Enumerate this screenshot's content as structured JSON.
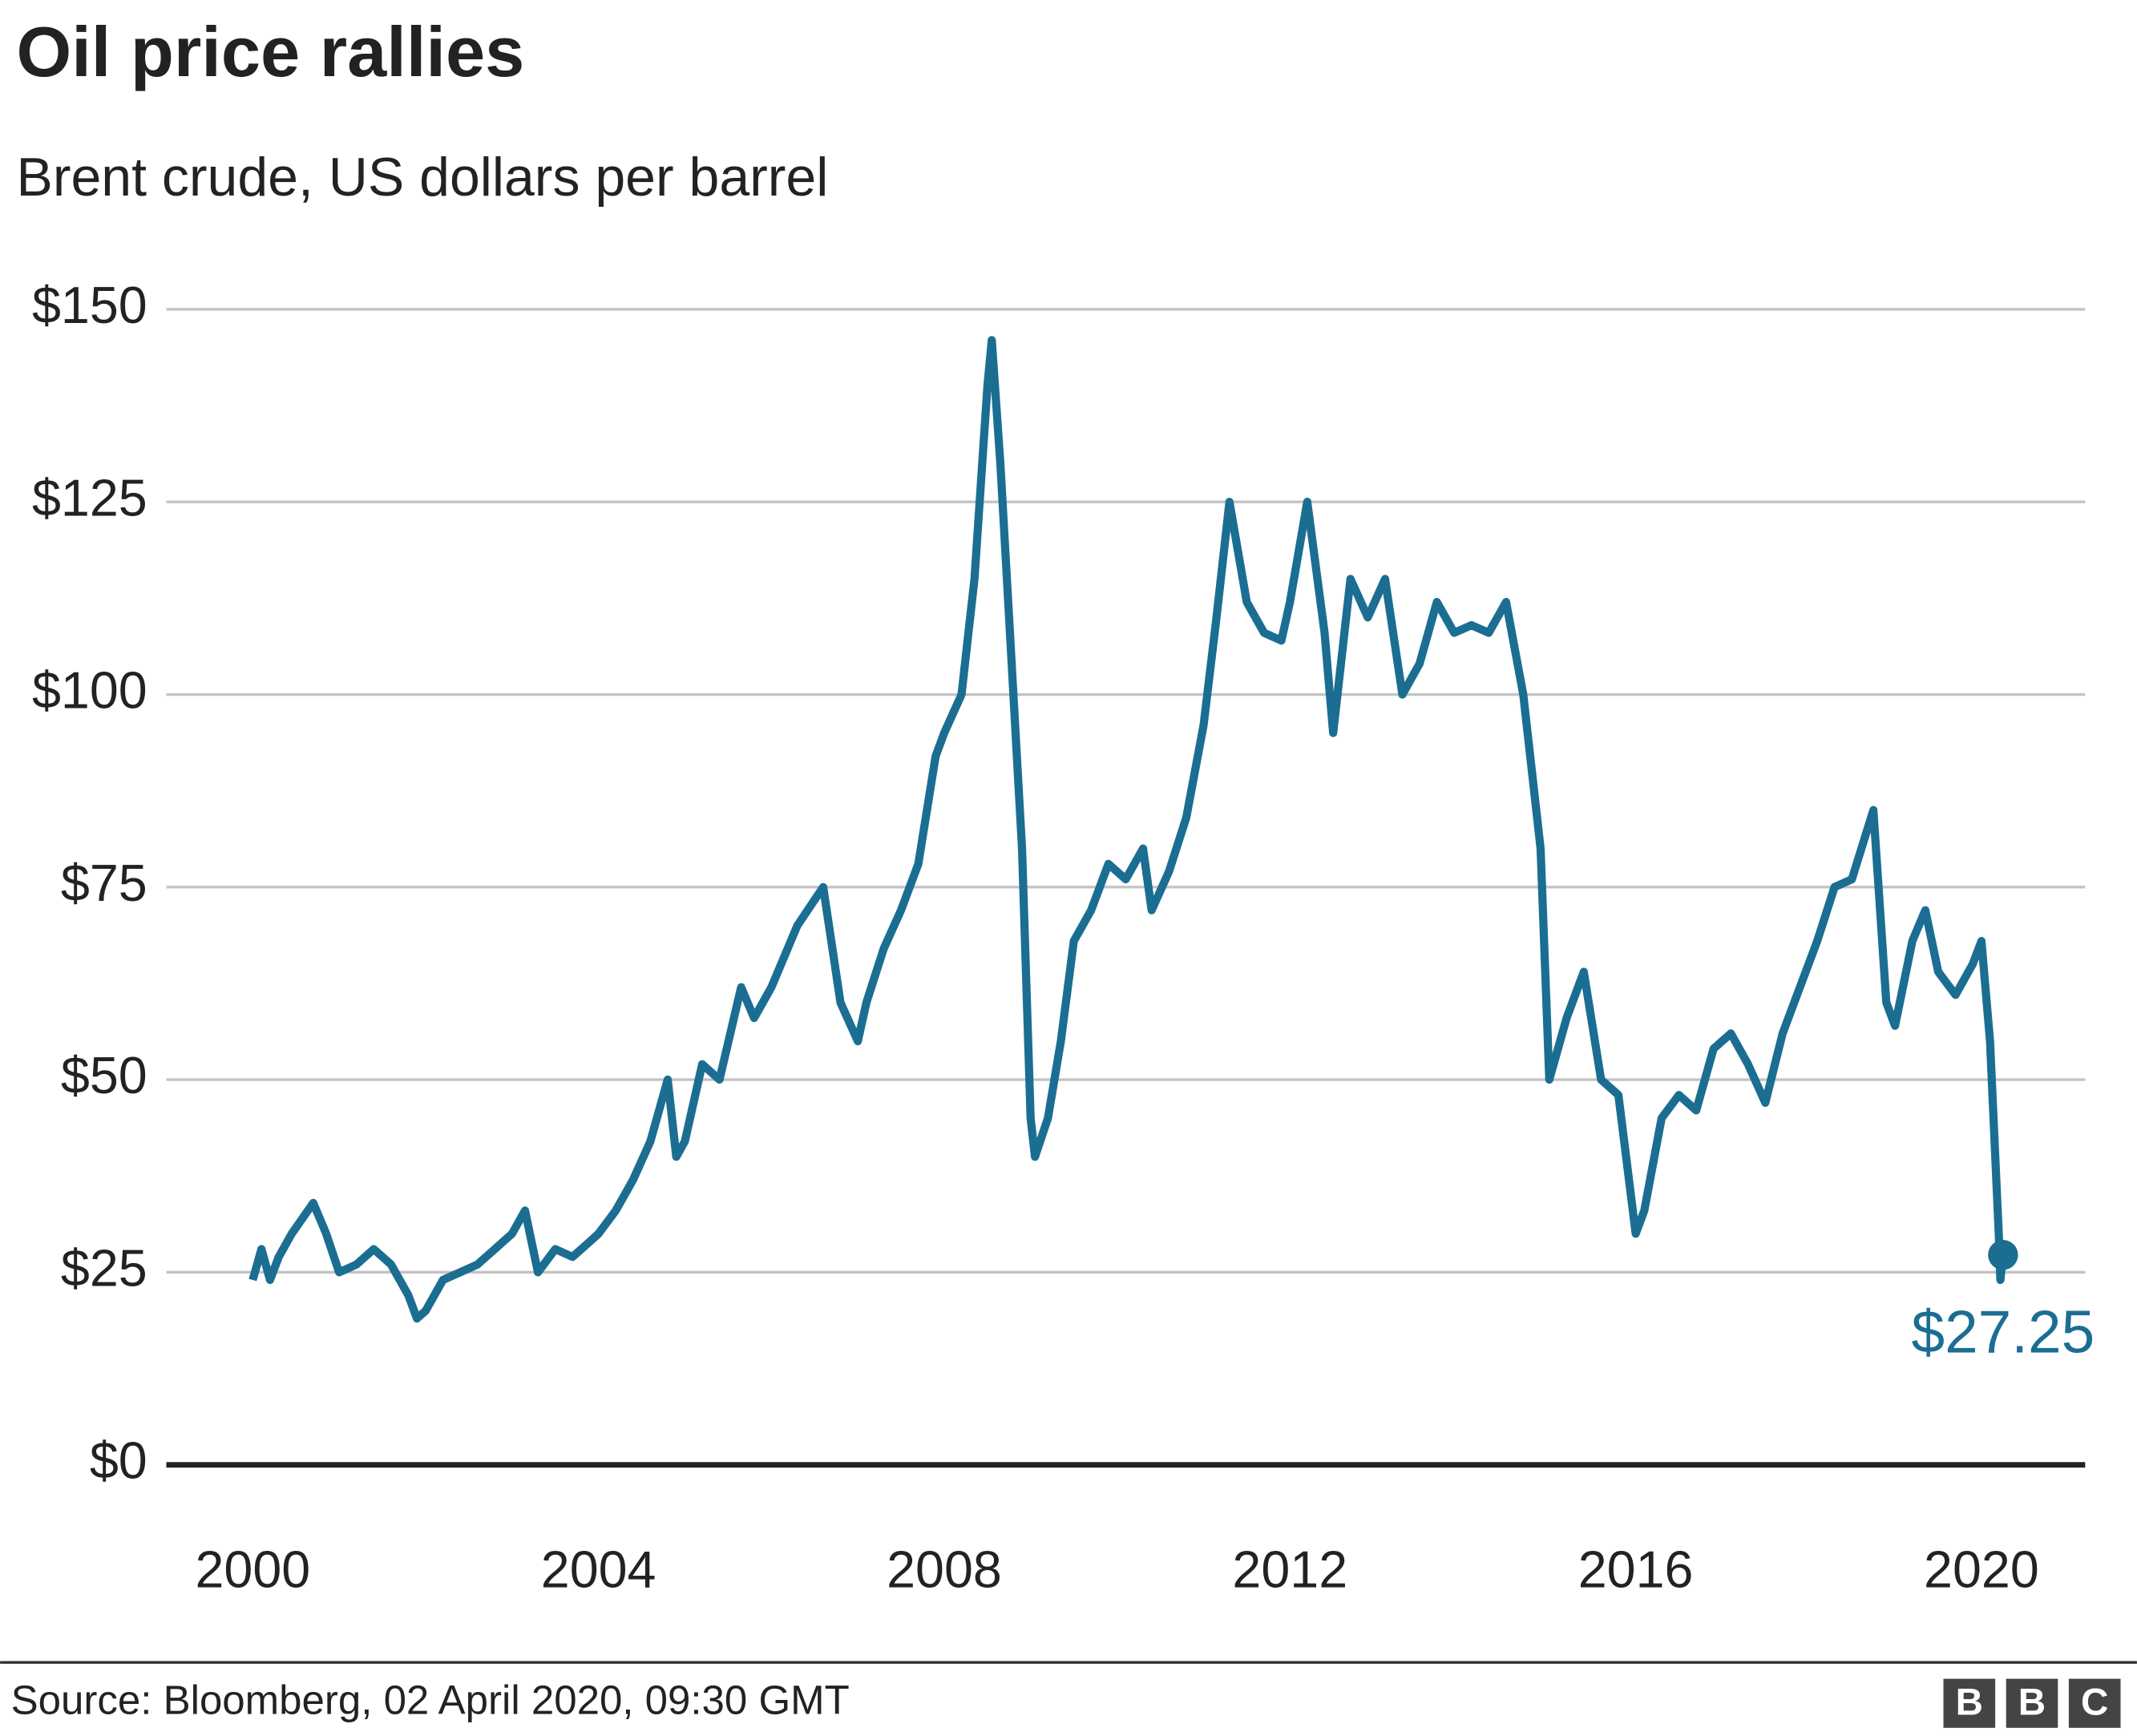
{
  "chart_data": {
    "type": "line",
    "title": "Oil price rallies",
    "subtitle": "Brent crude, US dollars per barrel",
    "source": "Source: Bloomberg, 02 April 2020, 09:30 GMT",
    "xlim": [
      1999,
      2021.2
    ],
    "xticks": [
      2000,
      2004,
      2008,
      2012,
      2016,
      2020
    ],
    "ylim": [
      0,
      150
    ],
    "yticks": [
      {
        "value": 0,
        "label": "$0"
      },
      {
        "value": 25,
        "label": "$25"
      },
      {
        "value": 50,
        "label": "$50"
      },
      {
        "value": 75,
        "label": "$75"
      },
      {
        "value": 100,
        "label": "$100"
      },
      {
        "value": 125,
        "label": "$125"
      },
      {
        "value": 150,
        "label": "$150"
      }
    ],
    "grid": true,
    "series": [
      {
        "color": "#1b6e92",
        "x": [
          2000.0,
          2000.1,
          2000.2,
          2000.3,
          2000.45,
          2000.7,
          2000.85,
          2001.0,
          2001.2,
          2001.4,
          2001.6,
          2001.8,
          2001.9,
          2002.0,
          2002.2,
          2002.4,
          2002.6,
          2002.8,
          2003.0,
          2003.15,
          2003.3,
          2003.5,
          2003.7,
          2003.9,
          2004.0,
          2004.2,
          2004.4,
          2004.6,
          2004.8,
          2004.9,
          2005.0,
          2005.2,
          2005.4,
          2005.65,
          2005.8,
          2006.0,
          2006.3,
          2006.6,
          2006.8,
          2007.0,
          2007.1,
          2007.3,
          2007.5,
          2007.7,
          2007.9,
          2008.0,
          2008.2,
          2008.35,
          2008.5,
          2008.55,
          2008.65,
          2008.75,
          2008.9,
          2009.0,
          2009.05,
          2009.2,
          2009.35,
          2009.5,
          2009.7,
          2009.9,
          2010.1,
          2010.3,
          2010.4,
          2010.6,
          2010.8,
          2011.0,
          2011.15,
          2011.3,
          2011.5,
          2011.7,
          2011.9,
          2012.0,
          2012.2,
          2012.4,
          2012.5,
          2012.7,
          2012.9,
          2013.1,
          2013.3,
          2013.5,
          2013.7,
          2013.9,
          2014.1,
          2014.3,
          2014.5,
          2014.7,
          2014.9,
          2015.0,
          2015.2,
          2015.4,
          2015.6,
          2015.8,
          2016.0,
          2016.1,
          2016.3,
          2016.5,
          2016.7,
          2016.9,
          2017.1,
          2017.3,
          2017.5,
          2017.7,
          2017.9,
          2018.1,
          2018.3,
          2018.5,
          2018.75,
          2018.9,
          2019.0,
          2019.2,
          2019.35,
          2019.5,
          2019.7,
          2019.9,
          2020.0,
          2020.1,
          2020.2,
          2020.22,
          2020.25
        ],
        "values": [
          24,
          28,
          24,
          27,
          30,
          34,
          30,
          25,
          26,
          28,
          26,
          22,
          19,
          20,
          24,
          25,
          26,
          28,
          30,
          33,
          25,
          28,
          27,
          29,
          30,
          33,
          37,
          42,
          50,
          40,
          42,
          52,
          50,
          62,
          58,
          62,
          70,
          75,
          60,
          55,
          60,
          67,
          72,
          78,
          92,
          95,
          100,
          115,
          140,
          146,
          130,
          110,
          80,
          45,
          40,
          45,
          55,
          68,
          72,
          78,
          76,
          80,
          72,
          77,
          84,
          96,
          110,
          125,
          112,
          108,
          107,
          112,
          125,
          108,
          95,
          115,
          110,
          115,
          100,
          104,
          112,
          108,
          109,
          108,
          112,
          100,
          80,
          50,
          58,
          64,
          50,
          48,
          30,
          33,
          45,
          48,
          46,
          54,
          56,
          52,
          47,
          56,
          62,
          68,
          75,
          76,
          85,
          60,
          57,
          68,
          72,
          64,
          61,
          65,
          68,
          55,
          30,
          24,
          27.25
        ],
        "value_labels": {
          "118": "$27.25"
        }
      }
    ]
  }
}
